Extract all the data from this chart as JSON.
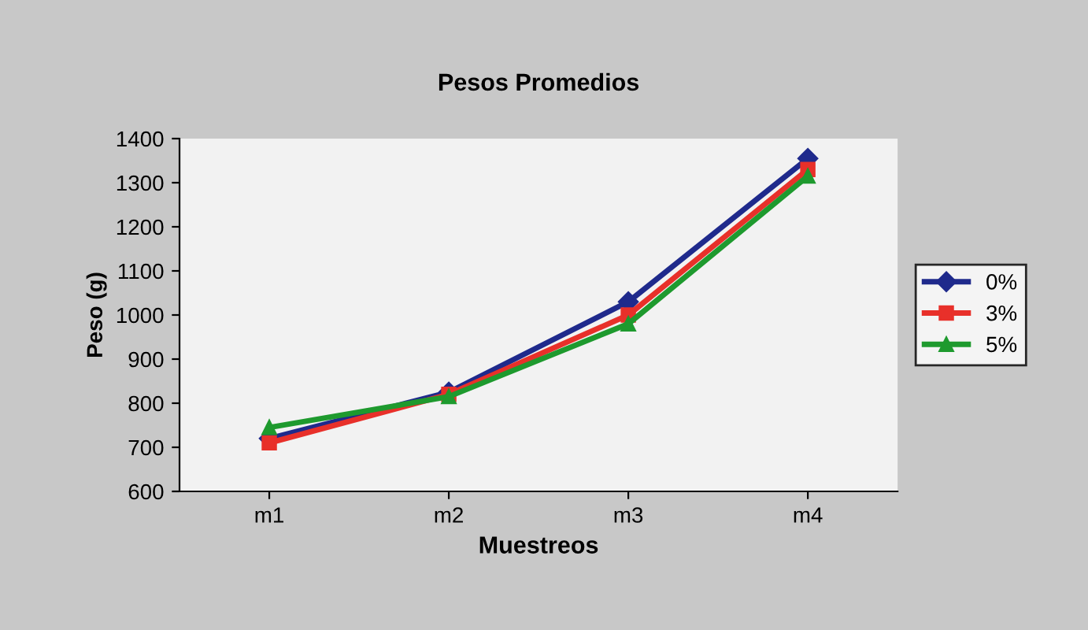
{
  "chart_data": {
    "type": "line",
    "title": "Pesos Promedios",
    "xlabel": "Muestreos",
    "ylabel": "Peso (g)",
    "categories": [
      "m1",
      "m2",
      "m3",
      "m4"
    ],
    "series": [
      {
        "name": "0%",
        "color": "#1f2a8c",
        "values": [
          720,
          825,
          1030,
          1355
        ],
        "marker": "diamond"
      },
      {
        "name": "3%",
        "color": "#e8302a",
        "values": [
          710,
          820,
          1000,
          1330
        ],
        "marker": "square"
      },
      {
        "name": "5%",
        "color": "#1e9a2e",
        "values": [
          745,
          815,
          980,
          1315
        ],
        "marker": "triangle"
      }
    ],
    "ylim": [
      600,
      1400
    ],
    "yticks": [
      600,
      700,
      800,
      900,
      1000,
      1100,
      1200,
      1300,
      1400
    ],
    "grid": false,
    "legend": "right",
    "line_style": "solid"
  }
}
